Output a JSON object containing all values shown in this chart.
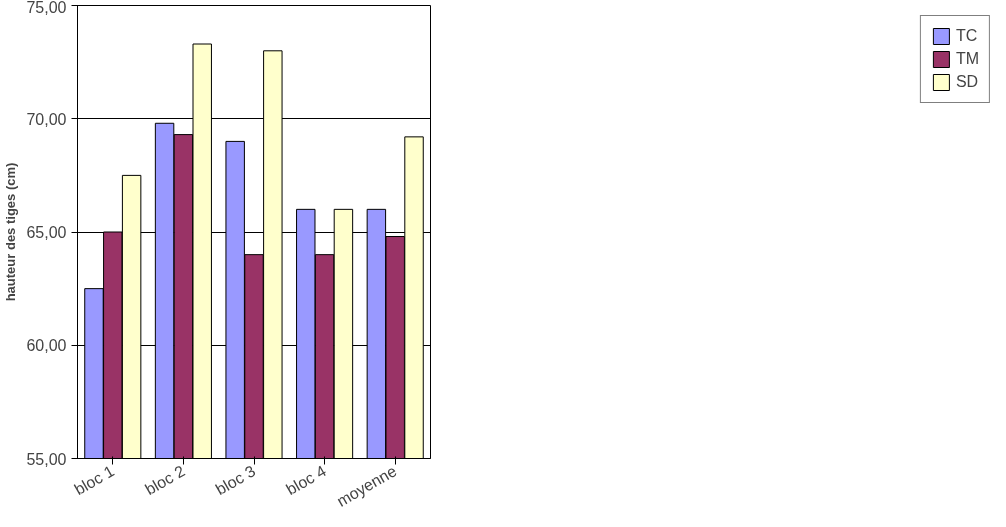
{
  "chart_data": {
    "type": "bar",
    "ylabel": "hauteur des tiges (cm)",
    "categories": [
      "bloc 1",
      "bloc 2",
      "bloc 3",
      "bloc 4",
      "moyenne"
    ],
    "series": [
      {
        "name": "TC",
        "color": "#9999ff",
        "values": [
          62.5,
          69.8,
          69.0,
          66.0,
          66.0
        ]
      },
      {
        "name": "TM",
        "color": "#993366",
        "values": [
          65.0,
          69.3,
          64.0,
          64.0,
          64.8
        ]
      },
      {
        "name": "SD",
        "color": "#ffffcc",
        "values": [
          67.5,
          73.3,
          73.0,
          66.0,
          69.2
        ]
      }
    ],
    "ylim": [
      55,
      75
    ],
    "yticks": [
      {
        "value": 55,
        "label": "55,00"
      },
      {
        "value": 60,
        "label": "60,00"
      },
      {
        "value": 65,
        "label": "65,00"
      },
      {
        "value": 70,
        "label": "70,00"
      },
      {
        "value": 75,
        "label": "75,00"
      }
    ],
    "grid": "y",
    "legend": "right"
  }
}
